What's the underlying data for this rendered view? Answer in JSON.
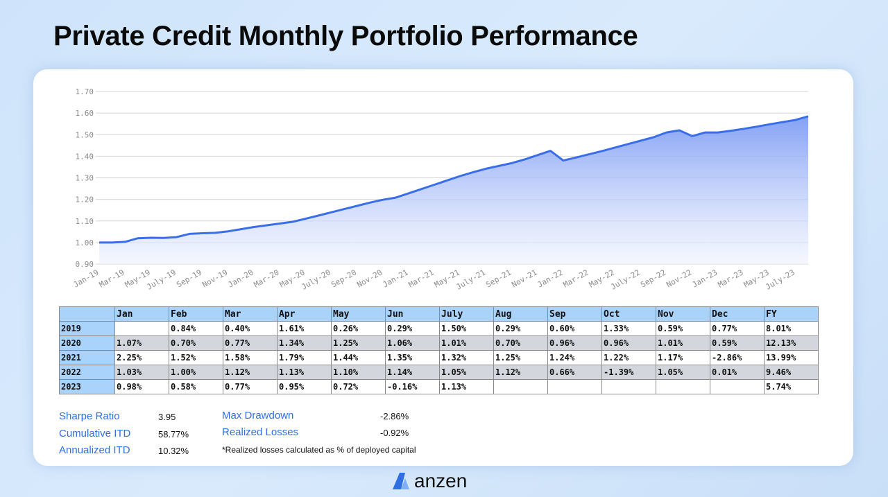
{
  "title": "Private Credit Monthly Portfolio Performance",
  "chart_data": {
    "type": "line",
    "color": "#3a6ee8",
    "categories": [
      "Jan-19",
      null,
      "Mar-19",
      null,
      "May-19",
      null,
      "July-19",
      null,
      "Sep-19",
      null,
      "Nov-19",
      null,
      "Jan-20",
      null,
      "Mar-20",
      null,
      "May-20",
      null,
      "July-20",
      null,
      "Sep-20",
      null,
      "Nov-20",
      null,
      "Jan-21",
      null,
      "Mar-21",
      null,
      "May-21",
      null,
      "July-21",
      null,
      "Sep-21",
      null,
      "Nov-21",
      null,
      "Jan-22",
      null,
      "Mar-22",
      null,
      "May-22",
      null,
      "July-22",
      null,
      "Sep-22",
      null,
      "Nov-22",
      null,
      "Jan-23",
      null,
      "Mar-23",
      null,
      "May-23",
      null,
      "July-23",
      null
    ],
    "values": [
      1.0,
      1.0,
      1.003,
      1.02,
      1.022,
      1.021,
      1.025,
      1.04,
      1.043,
      1.045,
      1.052,
      1.062,
      1.072,
      1.08,
      1.088,
      1.096,
      1.11,
      1.125,
      1.14,
      1.155,
      1.17,
      1.185,
      1.198,
      1.208,
      1.228,
      1.248,
      1.268,
      1.288,
      1.308,
      1.326,
      1.342,
      1.355,
      1.368,
      1.385,
      1.405,
      1.425,
      1.38,
      1.394,
      1.409,
      1.424,
      1.44,
      1.456,
      1.472,
      1.488,
      1.51,
      1.52,
      1.493,
      1.51,
      1.51,
      1.518,
      1.527,
      1.537,
      1.548,
      1.558,
      1.568,
      1.585
    ],
    "ylim": [
      0.9,
      1.7
    ],
    "yticks": [
      {
        "value": 0.9,
        "label": "0.90"
      },
      {
        "value": 1.0,
        "label": "1.00"
      },
      {
        "value": 1.1,
        "label": "1.10"
      },
      {
        "value": 1.2,
        "label": "1.20"
      },
      {
        "value": 1.3,
        "label": "1.30"
      },
      {
        "value": 1.4,
        "label": "1.40"
      },
      {
        "value": 1.5,
        "label": "1.50"
      },
      {
        "value": 1.6,
        "label": "1.60"
      },
      {
        "value": 1.7,
        "label": "1.70"
      }
    ],
    "grid": true
  },
  "table": {
    "header": [
      null,
      "Jan",
      "Feb",
      "Mar",
      "Apr",
      "May",
      "Jun",
      "July",
      "Aug",
      "Sep",
      "Oct",
      "Nov",
      "Dec",
      "FY"
    ],
    "rows": [
      [
        "2019",
        null,
        "0.84%",
        "0.40%",
        "1.61%",
        "0.26%",
        "0.29%",
        "1.50%",
        "0.29%",
        "0.60%",
        "1.33%",
        "0.59%",
        "0.77%",
        "8.01%"
      ],
      [
        "2020",
        "1.07%",
        "0.70%",
        "0.77%",
        "1.34%",
        "1.25%",
        "1.06%",
        "1.01%",
        "0.70%",
        "0.96%",
        "0.96%",
        "1.01%",
        "0.59%",
        "12.13%"
      ],
      [
        "2021",
        "2.25%",
        "1.52%",
        "1.58%",
        "1.79%",
        "1.44%",
        "1.35%",
        "1.32%",
        "1.25%",
        "1.24%",
        "1.22%",
        "1.17%",
        "-2.86%",
        "13.99%"
      ],
      [
        "2022",
        "1.03%",
        "1.00%",
        "1.12%",
        "1.13%",
        "1.10%",
        "1.14%",
        "1.05%",
        "1.12%",
        "0.66%",
        "-1.39%",
        "1.05%",
        "0.01%",
        "9.46%"
      ],
      [
        "2023",
        "0.98%",
        "0.58%",
        "0.77%",
        "0.95%",
        "0.72%",
        "-0.16%",
        "1.13%",
        null,
        null,
        null,
        null,
        null,
        "5.74%"
      ]
    ]
  },
  "stats": [
    {
      "label": "Sharpe Ratio",
      "value": "3.95"
    },
    {
      "label": "Cumulative ITD",
      "value": "58.77%"
    },
    {
      "label": "Annualized ITD",
      "value": "10.32%"
    },
    {
      "label": "Max Drawdown",
      "value": "-2.86%"
    },
    {
      "label": "Realized Losses",
      "value": "-0.92%"
    }
  ],
  "note": "*Realized losses calculated as % of deployed capital",
  "logo": "anzen"
}
